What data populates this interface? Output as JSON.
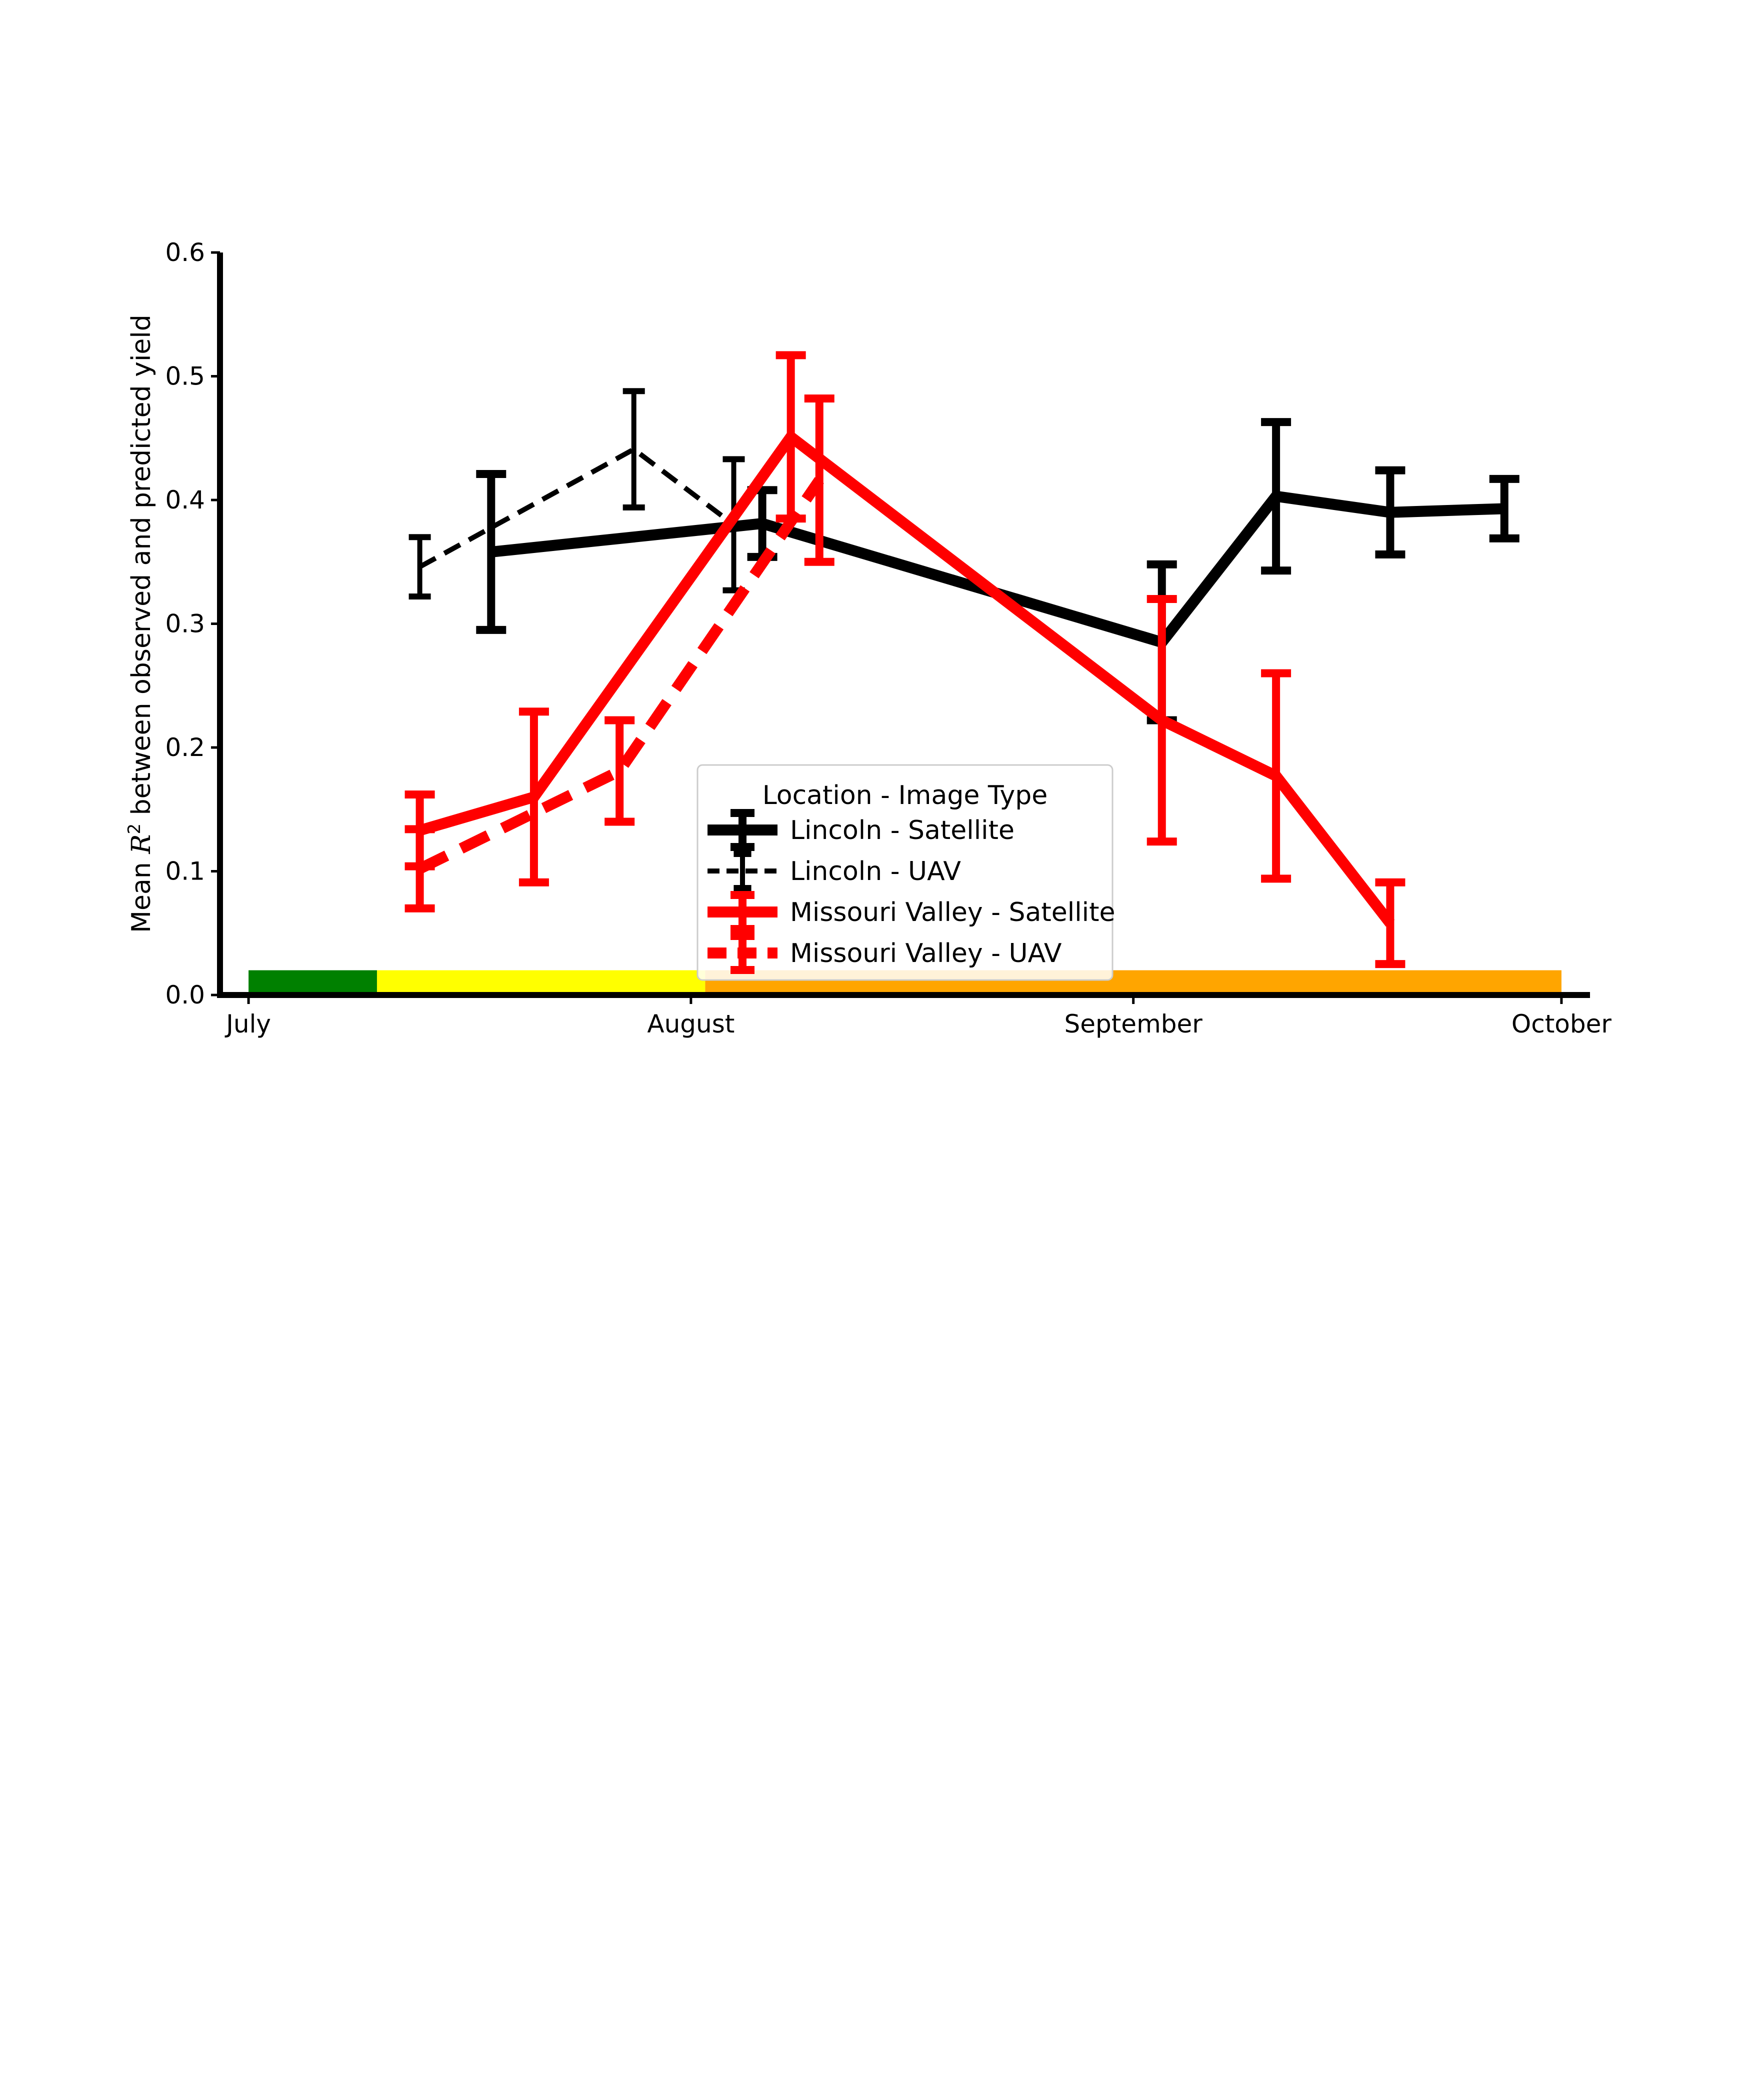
{
  "chart_data": {
    "type": "line",
    "title": "",
    "xlabel": "",
    "ylabel": "Mean R² between observed and predicted yield",
    "ylabel_parts": {
      "pre": "Mean ",
      "var": "R",
      "sup": "2",
      "post": " between observed and predicted yield"
    },
    "ylim": [
      0.0,
      0.6
    ],
    "yticks": [
      0.0,
      0.1,
      0.2,
      0.3,
      0.4,
      0.5,
      0.6
    ],
    "ytick_labels": [
      "0.0",
      "0.1",
      "0.2",
      "0.3",
      "0.4",
      "0.5",
      "0.6"
    ],
    "xlim": [
      "2021-06-29",
      "2021-10-03"
    ],
    "xticks": [
      "2021-07-01",
      "2021-08-01",
      "2021-09-01",
      "2021-10-01"
    ],
    "xtick_labels": [
      "July",
      "August",
      "September",
      "October"
    ],
    "grid": false,
    "legend": {
      "title": "Location - Image Type",
      "position": "lower center"
    },
    "series": [
      {
        "name": "Lincoln - Satellite",
        "color": "#000000",
        "linestyle": "solid",
        "linewidth": "thick",
        "points": [
          {
            "x": "2021-07-18",
            "y": 0.358,
            "err": 0.063
          },
          {
            "x": "2021-08-06",
            "y": 0.381,
            "err": 0.027
          },
          {
            "x": "2021-09-03",
            "y": 0.285,
            "err": 0.063
          },
          {
            "x": "2021-09-11",
            "y": 0.403,
            "err": 0.06
          },
          {
            "x": "2021-09-19",
            "y": 0.39,
            "err": 0.034
          },
          {
            "x": "2021-09-27",
            "y": 0.393,
            "err": 0.024
          }
        ]
      },
      {
        "name": "Lincoln - UAV",
        "color": "#000000",
        "linestyle": "dashed",
        "linewidth": "thin",
        "points": [
          {
            "x": "2021-07-13",
            "y": 0.346,
            "err": 0.024
          },
          {
            "x": "2021-07-28",
            "y": 0.441,
            "err": 0.047
          },
          {
            "x": "2021-08-04",
            "y": 0.38,
            "err": 0.053
          }
        ]
      },
      {
        "name": "Missouri Valley - Satellite",
        "color": "#ff0000",
        "linestyle": "solid",
        "linewidth": "thick",
        "points": [
          {
            "x": "2021-07-13",
            "y": 0.133,
            "err": 0.029
          },
          {
            "x": "2021-07-21",
            "y": 0.16,
            "err": 0.069
          },
          {
            "x": "2021-08-08",
            "y": 0.451,
            "err": 0.066
          },
          {
            "x": "2021-09-03",
            "y": 0.222,
            "err": 0.098
          },
          {
            "x": "2021-09-11",
            "y": 0.177,
            "err": 0.083
          },
          {
            "x": "2021-09-19",
            "y": 0.058,
            "err": 0.033
          }
        ]
      },
      {
        "name": "Missouri Valley - UAV",
        "color": "#ff0000",
        "linestyle": "dashed",
        "linewidth": "thick",
        "points": [
          {
            "x": "2021-07-13",
            "y": 0.102,
            "err": 0.032
          },
          {
            "x": "2021-07-27",
            "y": 0.181,
            "err": 0.041
          },
          {
            "x": "2021-08-10",
            "y": 0.416,
            "err": 0.066
          }
        ]
      }
    ],
    "background_bands": [
      {
        "start": "2021-07-01",
        "end": "2021-07-10",
        "value": 0.02,
        "color": "#008000"
      },
      {
        "start": "2021-07-10",
        "end": "2021-08-02",
        "value": 0.02,
        "color": "#ffff00"
      },
      {
        "start": "2021-08-02",
        "end": "2021-10-01",
        "value": 0.02,
        "color": "#ffa500"
      }
    ]
  }
}
